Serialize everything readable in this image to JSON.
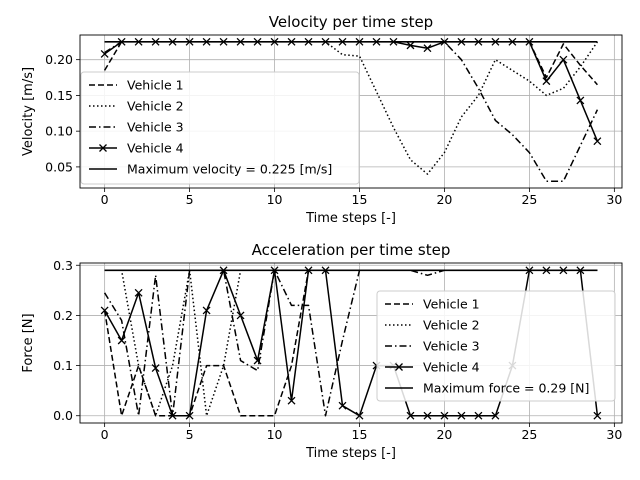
{
  "chart_data": [
    {
      "type": "line",
      "title": "Velocity per time step",
      "xlabel": "Time steps [-]",
      "ylabel": "Velocity [m/s]",
      "xlim": [
        -1.45,
        30.45
      ],
      "ylim": [
        0.0205,
        0.2345
      ],
      "xticks": [
        0,
        5,
        10,
        15,
        20,
        25,
        30
      ],
      "yticks": [
        0.05,
        0.1,
        0.15,
        0.2
      ],
      "ytick_labels": [
        "0.05",
        "0.10",
        "0.15",
        "0.20"
      ],
      "grid": true,
      "legend_position": "center-left",
      "series": [
        {
          "name": "Vehicle 1",
          "style": "dashed",
          "marker": "",
          "x": [
            0,
            1,
            2,
            3,
            4,
            5,
            6,
            7,
            8,
            9,
            10,
            11,
            12,
            13,
            14,
            15,
            16,
            17,
            18,
            19,
            20,
            21,
            22,
            23,
            24,
            25,
            26,
            27,
            28,
            29
          ],
          "y": [
            0.185,
            0.225,
            0.225,
            0.225,
            0.225,
            0.225,
            0.225,
            0.225,
            0.225,
            0.225,
            0.225,
            0.225,
            0.225,
            0.225,
            0.225,
            0.225,
            0.225,
            0.225,
            0.225,
            0.225,
            0.225,
            0.225,
            0.225,
            0.225,
            0.225,
            0.225,
            0.175,
            0.222,
            0.192,
            0.165
          ]
        },
        {
          "name": "Vehicle 2",
          "style": "dotted",
          "marker": "",
          "x": [
            0,
            1,
            2,
            3,
            4,
            5,
            6,
            7,
            8,
            9,
            10,
            11,
            12,
            13,
            14,
            15,
            16,
            17,
            18,
            19,
            20,
            21,
            22,
            23,
            24,
            25,
            26,
            27,
            28,
            29
          ],
          "y": [
            0.225,
            0.225,
            0.225,
            0.225,
            0.225,
            0.225,
            0.225,
            0.225,
            0.225,
            0.225,
            0.225,
            0.225,
            0.225,
            0.225,
            0.207,
            0.205,
            0.155,
            0.105,
            0.06,
            0.04,
            0.07,
            0.12,
            0.15,
            0.2,
            0.185,
            0.17,
            0.15,
            0.16,
            0.19,
            0.225
          ]
        },
        {
          "name": "Vehicle 3",
          "style": "dashdot",
          "marker": "",
          "x": [
            0,
            1,
            2,
            3,
            4,
            5,
            6,
            7,
            8,
            9,
            10,
            11,
            12,
            13,
            14,
            15,
            16,
            17,
            18,
            19,
            20,
            21,
            22,
            23,
            24,
            25,
            26,
            27,
            28,
            29
          ],
          "y": [
            0.21,
            0.225,
            0.225,
            0.225,
            0.225,
            0.225,
            0.225,
            0.225,
            0.225,
            0.225,
            0.225,
            0.225,
            0.225,
            0.225,
            0.225,
            0.225,
            0.225,
            0.225,
            0.225,
            0.225,
            0.225,
            0.2,
            0.16,
            0.115,
            0.095,
            0.07,
            0.03,
            0.03,
            0.08,
            0.13
          ]
        },
        {
          "name": "Vehicle 4",
          "style": "solid",
          "marker": "x",
          "x": [
            0,
            1,
            2,
            3,
            4,
            5,
            6,
            7,
            8,
            9,
            10,
            11,
            12,
            13,
            14,
            15,
            16,
            17,
            18,
            19,
            20,
            21,
            22,
            23,
            24,
            25,
            26,
            27,
            28,
            29
          ],
          "y": [
            0.208,
            0.225,
            0.225,
            0.225,
            0.225,
            0.225,
            0.225,
            0.225,
            0.225,
            0.225,
            0.225,
            0.225,
            0.225,
            0.225,
            0.225,
            0.225,
            0.225,
            0.225,
            0.22,
            0.216,
            0.225,
            0.225,
            0.225,
            0.225,
            0.225,
            0.225,
            0.17,
            0.2,
            0.143,
            0.086
          ]
        },
        {
          "name": "Maximum velocity = 0.225 [m/s]",
          "style": "solid",
          "marker": "",
          "width": 1.6,
          "x": [
            0,
            29
          ],
          "y": [
            0.225,
            0.225
          ]
        }
      ]
    },
    {
      "type": "line",
      "title": "Acceleration per time step",
      "xlabel": "Time steps [-]",
      "ylabel": "Force [N]",
      "xlim": [
        -1.45,
        30.45
      ],
      "ylim": [
        -0.0145,
        0.3045
      ],
      "xticks": [
        0,
        5,
        10,
        15,
        20,
        25,
        30
      ],
      "yticks": [
        0.0,
        0.1,
        0.2,
        0.3
      ],
      "ytick_labels": [
        "0.0",
        "0.1",
        "0.2",
        "0.3"
      ],
      "grid": true,
      "legend_position": "center-right",
      "series": [
        {
          "name": "Vehicle 1",
          "style": "dashed",
          "marker": "",
          "x": [
            0,
            1,
            2,
            3,
            4,
            5,
            6,
            7,
            8,
            9,
            10,
            11,
            12,
            13,
            14,
            15,
            16,
            17,
            18,
            19,
            20,
            21,
            22,
            23,
            24,
            25,
            26,
            27,
            28,
            29
          ],
          "y": [
            0.21,
            0.0,
            0.1,
            0.0,
            0.0,
            0.0,
            0.1,
            0.1,
            0.0,
            0.0,
            0.0,
            0.1,
            0.29,
            0.29,
            0.29,
            0.29,
            0.29,
            0.29,
            0.29,
            0.29,
            0.29,
            0.29,
            0.29,
            0.29,
            0.29,
            0.29,
            0.29,
            0.29,
            0.29,
            0.29
          ]
        },
        {
          "name": "Vehicle 2",
          "style": "dotted",
          "marker": "",
          "x": [
            0,
            1,
            2,
            3,
            4,
            5,
            6,
            7,
            8,
            9,
            10,
            11,
            12,
            13,
            14,
            15,
            16,
            17,
            18,
            19,
            20,
            21,
            22,
            23,
            24,
            25,
            26,
            27,
            28,
            29
          ],
          "y": [
            0.29,
            0.29,
            0.1,
            0.0,
            0.1,
            0.29,
            0.0,
            0.1,
            0.29,
            0.29,
            0.29,
            0.29,
            0.29,
            0.29,
            0.29,
            0.29,
            0.29,
            0.29,
            0.29,
            0.29,
            0.29,
            0.29,
            0.29,
            0.29,
            0.29,
            0.29,
            0.29,
            0.29,
            0.29,
            0.29
          ]
        },
        {
          "name": "Vehicle 3",
          "style": "dashdot",
          "marker": "",
          "x": [
            0,
            1,
            2,
            3,
            4,
            5,
            6,
            7,
            8,
            9,
            10,
            11,
            12,
            13,
            14,
            15,
            16,
            17,
            18,
            19,
            20,
            21,
            22,
            23,
            24,
            25,
            26,
            27,
            28,
            29
          ],
          "y": [
            0.245,
            0.19,
            0.0,
            0.28,
            0.0,
            0.29,
            0.29,
            0.29,
            0.11,
            0.09,
            0.29,
            0.22,
            0.22,
            0.0,
            0.15,
            0.29,
            0.29,
            0.29,
            0.29,
            0.28,
            0.29,
            0.29,
            0.29,
            0.29,
            0.29,
            0.29,
            0.29,
            0.29,
            0.29,
            0.29
          ]
        },
        {
          "name": "Vehicle 4",
          "style": "solid",
          "marker": "x",
          "x": [
            0,
            1,
            2,
            3,
            4,
            5,
            6,
            7,
            8,
            9,
            10,
            11,
            12,
            13,
            14,
            15,
            16,
            17,
            18,
            19,
            20,
            21,
            22,
            23,
            24,
            25,
            26,
            27,
            28,
            29
          ],
          "y": [
            0.21,
            0.15,
            0.245,
            0.095,
            0.0,
            0.0,
            0.21,
            0.29,
            0.2,
            0.11,
            0.29,
            0.03,
            0.29,
            0.29,
            0.02,
            0.0,
            0.1,
            0.1,
            0.0,
            0.0,
            0.0,
            0.0,
            0.0,
            0.0,
            0.1,
            0.29,
            0.29,
            0.29,
            0.29,
            0.0
          ]
        },
        {
          "name": "Maximum force = 0.29 [N]",
          "style": "solid",
          "marker": "",
          "width": 1.6,
          "x": [
            0,
            29
          ],
          "y": [
            0.29,
            0.29
          ]
        }
      ]
    }
  ]
}
